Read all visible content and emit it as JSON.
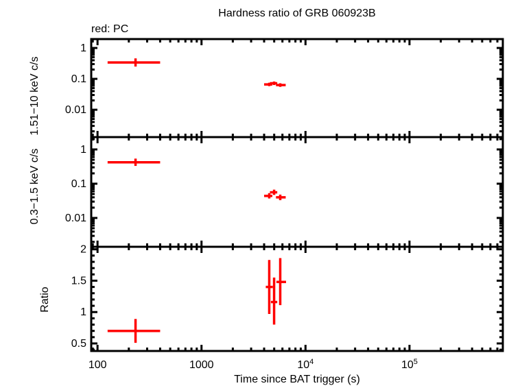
{
  "colors": {
    "data": "#ff0000",
    "frame": "#000000",
    "background": "#ffffff"
  },
  "chart_data": {
    "type": "scatter",
    "title": "Hardness ratio of GRB 060923B",
    "annotation": "red: PC",
    "xlabel": "Time since BAT trigger (s)",
    "xscale": "log",
    "xlim": [
      87,
      790000
    ],
    "x_ticks": [
      {
        "value": 100,
        "label": "100"
      },
      {
        "value": 1000,
        "label": "1000"
      },
      {
        "value": 10000,
        "label": "10^4"
      },
      {
        "value": 100000,
        "label": "10^5"
      }
    ],
    "legend_note": "red points = PC mode data",
    "panels": [
      {
        "name": "hard-band-panel",
        "ylabel": "1.51−10 keV c/s",
        "yscale": "log",
        "ylim": [
          0.0013,
          1.94
        ],
        "y_ticks": [
          {
            "value": 1,
            "label": "1"
          },
          {
            "value": 0.1,
            "label": "0.1"
          },
          {
            "value": 0.01,
            "label": "0.01"
          }
        ],
        "points": [
          {
            "x": 232,
            "xlo": 125,
            "xhi": 400,
            "y": 0.34,
            "ylo": 0.25,
            "yhi": 0.46
          },
          {
            "x": 4480,
            "xlo": 4000,
            "xhi": 4800,
            "y": 0.066,
            "ylo": 0.058,
            "yhi": 0.075
          },
          {
            "x": 4990,
            "xlo": 4550,
            "xhi": 5350,
            "y": 0.072,
            "ylo": 0.063,
            "yhi": 0.082
          },
          {
            "x": 5715,
            "xlo": 5200,
            "xhi": 6450,
            "y": 0.063,
            "ylo": 0.055,
            "yhi": 0.072
          }
        ]
      },
      {
        "name": "soft-band-panel",
        "ylabel": "0.3−1.5 keV c/s",
        "yscale": "log",
        "ylim": [
          0.00144,
          2.29
        ],
        "y_ticks": [
          {
            "value": 1,
            "label": "1"
          },
          {
            "value": 0.1,
            "label": "0.1"
          },
          {
            "value": 0.01,
            "label": "0.01"
          }
        ],
        "points": [
          {
            "x": 232,
            "xlo": 125,
            "xhi": 400,
            "y": 0.42,
            "ylo": 0.33,
            "yhi": 0.54
          },
          {
            "x": 4480,
            "xlo": 4000,
            "xhi": 4800,
            "y": 0.044,
            "ylo": 0.037,
            "yhi": 0.053
          },
          {
            "x": 4990,
            "xlo": 4550,
            "xhi": 5350,
            "y": 0.056,
            "ylo": 0.047,
            "yhi": 0.067
          },
          {
            "x": 5715,
            "xlo": 5200,
            "xhi": 6450,
            "y": 0.04,
            "ylo": 0.033,
            "yhi": 0.048
          }
        ]
      },
      {
        "name": "ratio-panel",
        "ylabel": "Ratio",
        "yscale": "linear",
        "ylim": [
          0.38,
          2.04
        ],
        "y_ticks": [
          {
            "value": 2,
            "label": "2"
          },
          {
            "value": 1.5,
            "label": "1.5"
          },
          {
            "value": 1,
            "label": "1"
          },
          {
            "value": 0.5,
            "label": "0.5"
          }
        ],
        "points": [
          {
            "x": 232,
            "xlo": 125,
            "xhi": 400,
            "y": 0.7,
            "ylo": 0.51,
            "yhi": 0.89
          },
          {
            "x": 4480,
            "xlo": 4150,
            "xhi": 4850,
            "y": 1.4,
            "ylo": 0.97,
            "yhi": 1.83
          },
          {
            "x": 4990,
            "xlo": 4650,
            "xhi": 5350,
            "y": 1.16,
            "ylo": 0.8,
            "yhi": 1.55
          },
          {
            "x": 5715,
            "xlo": 5250,
            "xhi": 6500,
            "y": 1.48,
            "ylo": 1.11,
            "yhi": 1.86
          }
        ]
      }
    ]
  }
}
